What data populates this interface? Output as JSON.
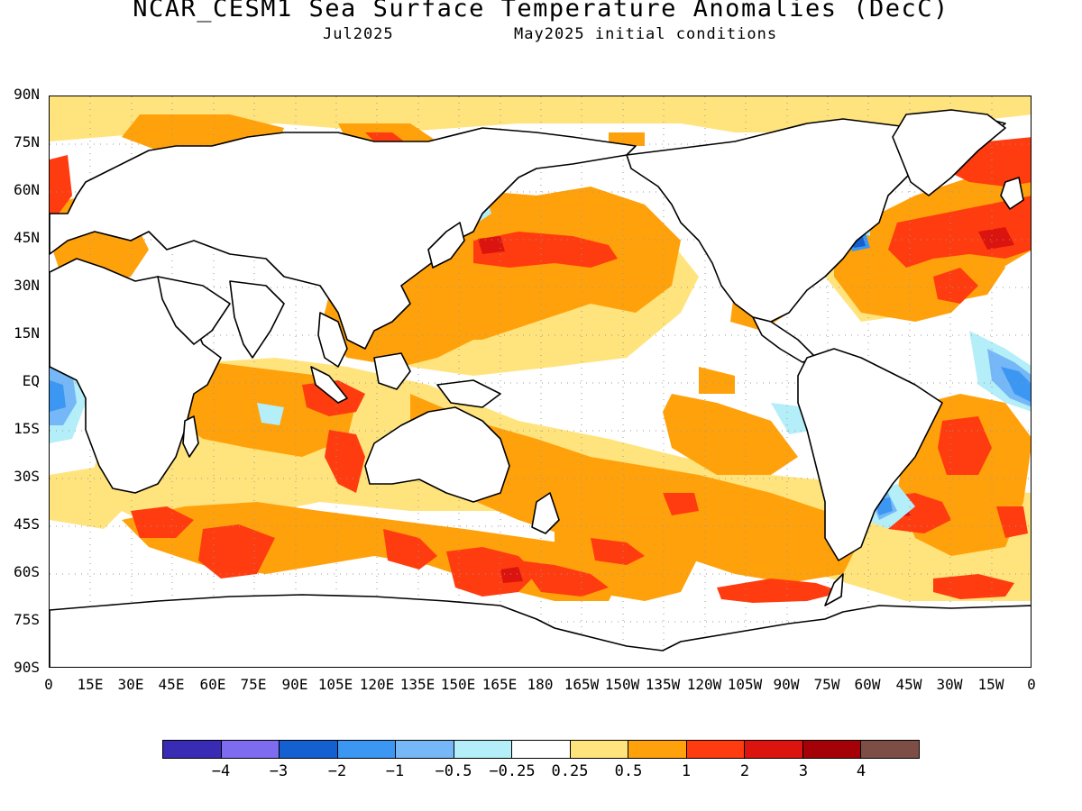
{
  "header": {
    "title": "NCAR_CESM1 Sea Surface Temperature Anomalies (DecC)",
    "subtitle_left": "Jul2025",
    "subtitle_right": "May2025 initial conditions"
  },
  "map": {
    "y_labels": [
      "90N",
      "75N",
      "60N",
      "45N",
      "30N",
      "15N",
      "EQ",
      "15S",
      "30S",
      "45S",
      "60S",
      "75S",
      "90S"
    ],
    "x_labels": [
      "0",
      "15E",
      "30E",
      "45E",
      "60E",
      "75E",
      "90E",
      "105E",
      "120E",
      "135E",
      "150E",
      "165E",
      "180",
      "165W",
      "150W",
      "135W",
      "120W",
      "105W",
      "90W",
      "75W",
      "60W",
      "45W",
      "30W",
      "15W",
      "0"
    ]
  },
  "colorbar": {
    "colors": [
      "#3a2bb4",
      "#7d6cf0",
      "#1560d0",
      "#3c97f2",
      "#76b8f7",
      "#b3eef9",
      "#ffffff",
      "#ffe47d",
      "#ffa10a",
      "#ff3c0f",
      "#dc140f",
      "#a50208",
      "#7d4e46"
    ],
    "labels": [
      "−4",
      "−3",
      "−2",
      "−1",
      "−0.5",
      "−0.25",
      "0.25",
      "0.5",
      "1",
      "2",
      "3",
      "4"
    ]
  }
}
